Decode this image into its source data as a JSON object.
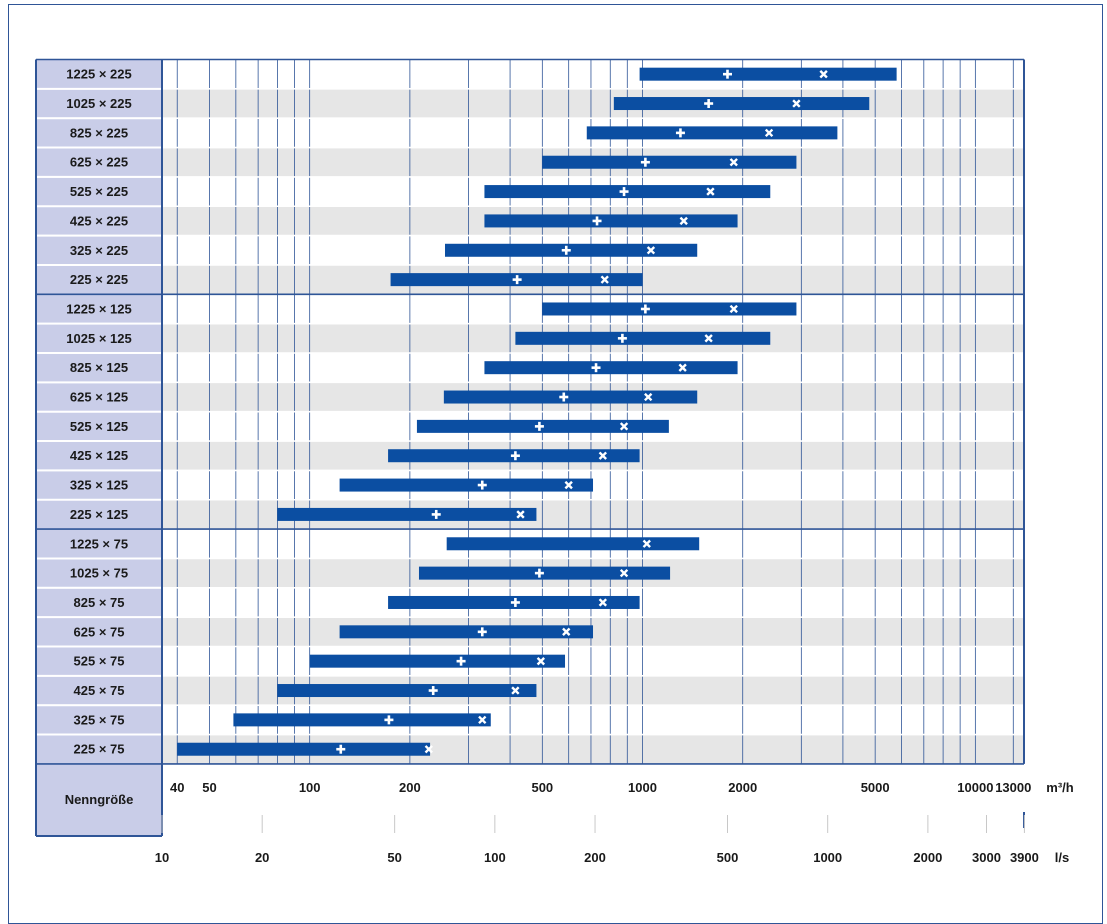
{
  "chart_data": {
    "type": "bar",
    "orientation": "horizontal-range",
    "title": "",
    "corner_label": "Nenngröße",
    "x_scale": "log",
    "x_range_m3h": [
      36,
      14000
    ],
    "primary_axis": {
      "unit": "m³/h",
      "ticks": [
        40,
        50,
        100,
        200,
        500,
        1000,
        2000,
        5000,
        10000,
        13000
      ],
      "tick_labels": [
        "40",
        "50",
        "100",
        "200",
        "500",
        "1000",
        "2000",
        "5000",
        "10000",
        "13000"
      ]
    },
    "secondary_axis": {
      "unit": "l/s",
      "ticks": [
        10,
        20,
        50,
        100,
        200,
        500,
        1000,
        2000,
        3000,
        3900
      ],
      "tick_labels": [
        "10",
        "20",
        "50",
        "100",
        "200",
        "500",
        "1000",
        "2000",
        "3000",
        "3900"
      ]
    },
    "rows": [
      {
        "label": "1225 × 225",
        "min": 980,
        "plus": 1800,
        "cross": 3500,
        "max": 5800
      },
      {
        "label": "1025 × 225",
        "min": 820,
        "plus": 1580,
        "cross": 2900,
        "max": 4800
      },
      {
        "label": "825 × 225",
        "min": 680,
        "plus": 1300,
        "cross": 2400,
        "max": 3850
      },
      {
        "label": "625 × 225",
        "min": 500,
        "plus": 1020,
        "cross": 1880,
        "max": 2900
      },
      {
        "label": "525 × 225",
        "min": 335,
        "plus": 880,
        "cross": 1600,
        "max": 2420
      },
      {
        "label": "425 × 225",
        "min": 335,
        "plus": 730,
        "cross": 1330,
        "max": 1930
      },
      {
        "label": "325 × 225",
        "min": 255,
        "plus": 590,
        "cross": 1060,
        "max": 1460
      },
      {
        "label": "225 × 225",
        "min": 175,
        "plus": 420,
        "cross": 770,
        "max": 1000
      },
      {
        "label": "1225 × 125",
        "min": 500,
        "plus": 1020,
        "cross": 1880,
        "max": 2900
      },
      {
        "label": "1025 × 125",
        "min": 415,
        "plus": 870,
        "cross": 1580,
        "max": 2420
      },
      {
        "label": "825 × 125",
        "min": 335,
        "plus": 725,
        "cross": 1320,
        "max": 1930
      },
      {
        "label": "625 × 125",
        "min": 253,
        "plus": 580,
        "cross": 1040,
        "max": 1460
      },
      {
        "label": "525 × 125",
        "min": 210,
        "plus": 490,
        "cross": 880,
        "max": 1200
      },
      {
        "label": "425 × 125",
        "min": 172,
        "plus": 415,
        "cross": 760,
        "max": 980
      },
      {
        "label": "325 × 125",
        "min": 123,
        "plus": 330,
        "cross": 600,
        "max": 710
      },
      {
        "label": "225 × 125",
        "min": 80,
        "plus": 240,
        "cross": 430,
        "max": 480
      },
      {
        "label": "1225 × 75",
        "min": 258,
        "plus": "",
        "cross": 1030,
        "max": 1480
      },
      {
        "label": "1025 × 75",
        "min": 213,
        "plus": 490,
        "cross": 880,
        "max": 1210
      },
      {
        "label": "825 × 75",
        "min": 172,
        "plus": 415,
        "cross": 760,
        "max": 980
      },
      {
        "label": "625 × 75",
        "min": 123,
        "plus": 330,
        "cross": 590,
        "max": 710
      },
      {
        "label": "525 × 75",
        "min": 100,
        "plus": 285,
        "cross": 495,
        "max": 585
      },
      {
        "label": "425 × 75",
        "min": 80,
        "plus": 235,
        "cross": 415,
        "max": 480
      },
      {
        "label": "325 × 75",
        "min": 59,
        "plus": 173,
        "cross": 330,
        "max": 350
      },
      {
        "label": "225 × 75",
        "min": 40,
        "plus": 124,
        "cross": 228,
        "max": 230
      }
    ],
    "colors": {
      "bar": "#0b4ea2",
      "marker": "#ffffff",
      "label_bg": "#c9cde8",
      "grid": "#2f5597",
      "alt_row": "#e6e6e6",
      "row_bg": "#ffffff",
      "text": "#1a1a1a"
    },
    "markers": {
      "plus": "plus-icon",
      "cross": "cross-icon"
    }
  }
}
